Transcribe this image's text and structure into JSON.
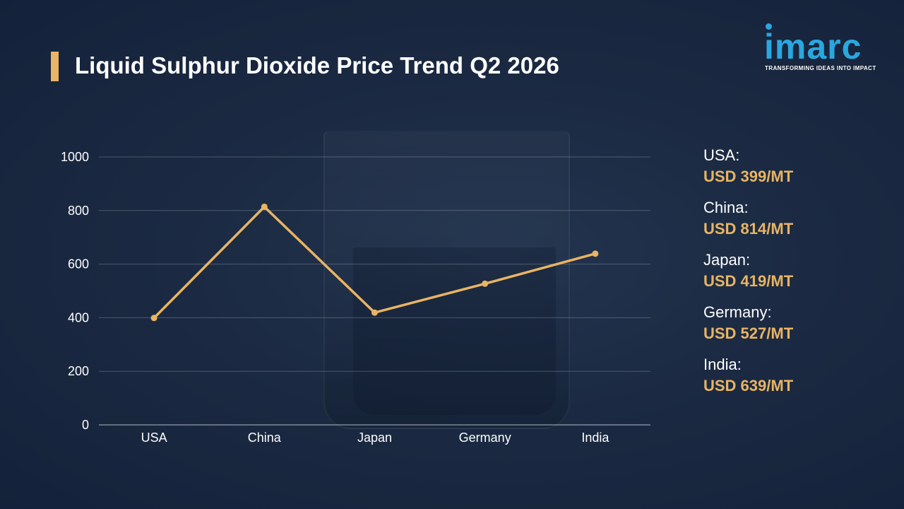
{
  "title": "Liquid Sulphur Dioxide Price Trend Q2 2026",
  "logo": {
    "word": "imarc",
    "tagline": "TRANSFORMING IDEAS INTO IMPACT"
  },
  "colors": {
    "accent": "#e9b463",
    "brand": "#2aa7df",
    "background": "#1b2a42"
  },
  "chart_data": {
    "type": "line",
    "categories": [
      "USA",
      "China",
      "Japan",
      "Germany",
      "India"
    ],
    "values": [
      399,
      814,
      419,
      527,
      639
    ],
    "y_ticks": [
      "0",
      "200",
      "400",
      "600",
      "800",
      "1000"
    ],
    "ylim": [
      0,
      1000
    ],
    "grid": true
  },
  "price_list": [
    {
      "country": "USA:",
      "price": "USD 399/MT"
    },
    {
      "country": "China:",
      "price": "USD 814/MT"
    },
    {
      "country": "Japan:",
      "price": "USD 419/MT"
    },
    {
      "country": "Germany:",
      "price": "USD 527/MT"
    },
    {
      "country": "India:",
      "price": "USD 639/MT"
    }
  ]
}
